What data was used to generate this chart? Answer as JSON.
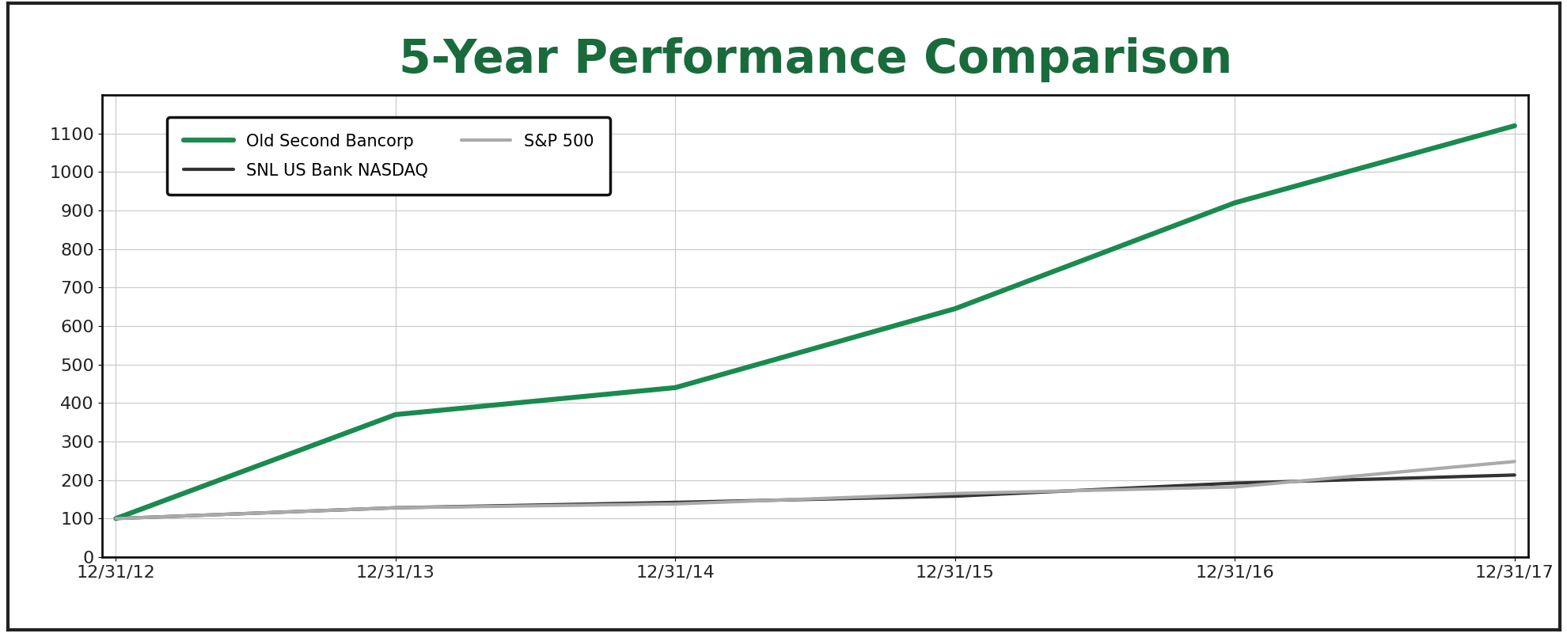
{
  "title": "5-Year Performance Comparison",
  "title_color": "#1a6b3c",
  "title_fontsize": 42,
  "x_labels": [
    "12/31/12",
    "12/31/13",
    "12/31/14",
    "12/31/15",
    "12/31/16",
    "12/31/17"
  ],
  "x_values": [
    0,
    1,
    2,
    3,
    4,
    5
  ],
  "series": [
    {
      "label": "Old Second Bancorp",
      "color": "#1a8a50",
      "linewidth": 4.5,
      "values": [
        100,
        370,
        440,
        645,
        920,
        1120
      ]
    },
    {
      "label": "SNL US Bank NASDAQ",
      "color": "#333333",
      "linewidth": 3.0,
      "values": [
        100,
        128,
        142,
        158,
        192,
        213
      ]
    },
    {
      "label": "S&P 500",
      "color": "#aaaaaa",
      "linewidth": 3.0,
      "values": [
        100,
        128,
        138,
        165,
        182,
        248
      ]
    }
  ],
  "ylim": [
    0,
    1200
  ],
  "yticks": [
    0,
    100,
    200,
    300,
    400,
    500,
    600,
    700,
    800,
    900,
    1000,
    1100
  ],
  "tick_fontsize": 16,
  "xlabel_fontsize": 16,
  "grid_color": "#cccccc",
  "background_color": "#ffffff",
  "border_color": "#111111",
  "outer_border_color": "#222222"
}
